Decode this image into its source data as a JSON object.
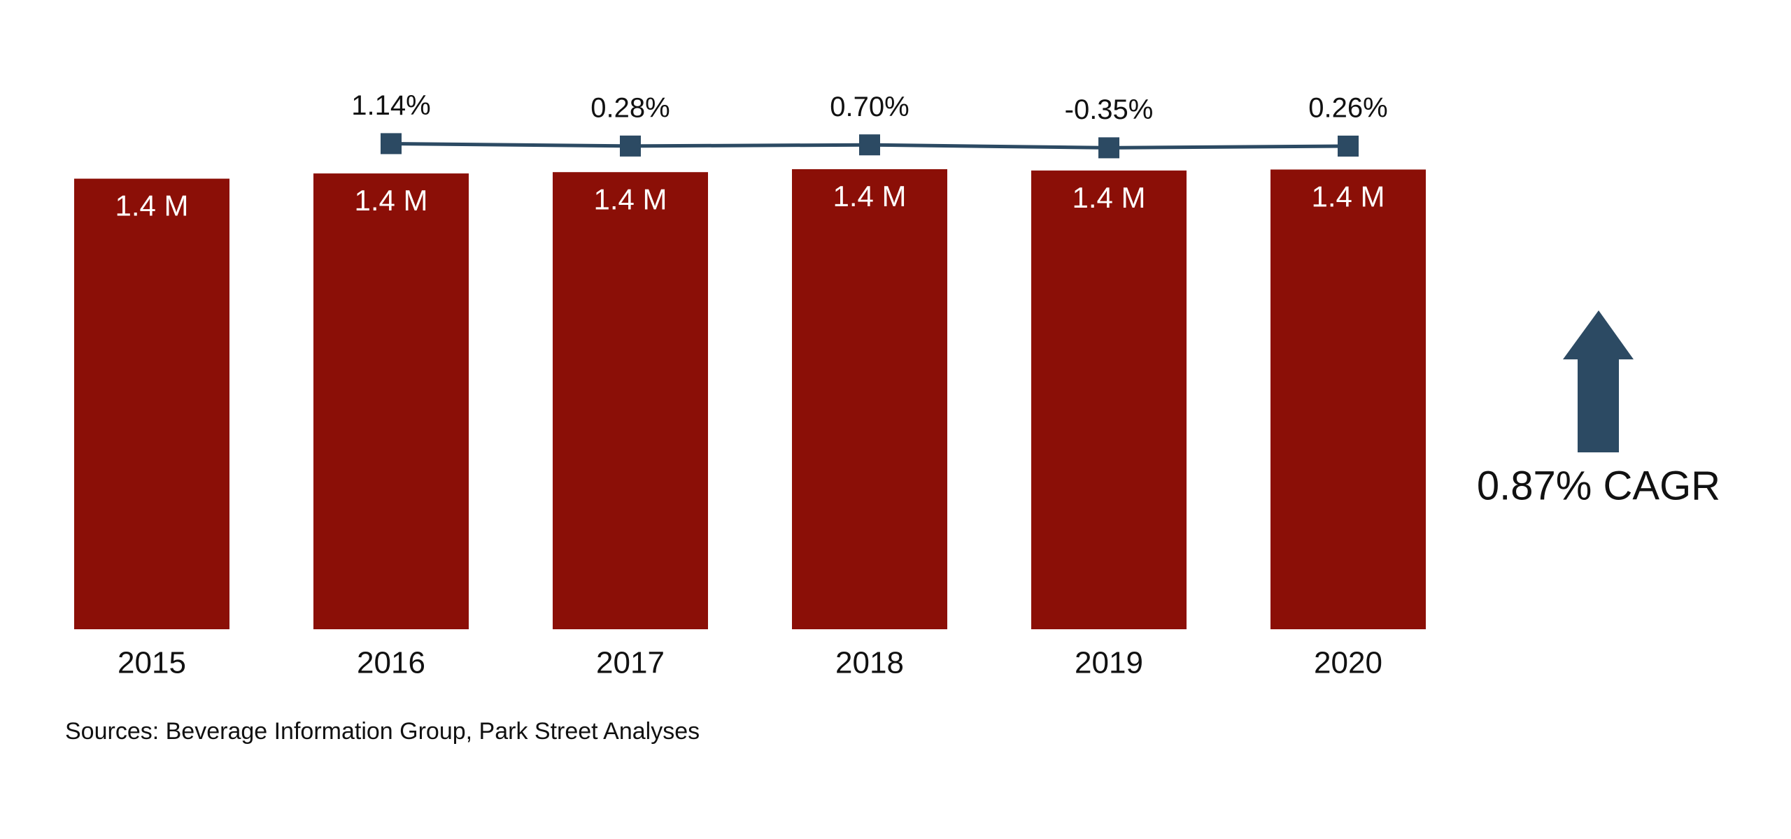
{
  "chart_data": {
    "type": "bar",
    "categories": [
      "2015",
      "2016",
      "2017",
      "2018",
      "2019",
      "2020"
    ],
    "series": [
      {
        "type": "bar",
        "color": "#8b0f07",
        "values": [
          1.38,
          1.396,
          1.4,
          1.409,
          1.405,
          1.408
        ],
        "value_labels": [
          "1.4 M",
          "1.4 M",
          "1.4 M",
          "1.4 M",
          "1.4 M",
          "1.4 M"
        ]
      },
      {
        "type": "line",
        "color": "#2c4a63",
        "values": [
          null,
          1.14,
          0.28,
          0.7,
          -0.35,
          0.26
        ],
        "value_labels": [
          null,
          "1.14%",
          "0.28%",
          "0.70%",
          "-0.35%",
          "0.26%"
        ]
      }
    ],
    "annotation": "0.87% CAGR",
    "source": "Sources: Beverage Information Group, Park Street Analyses"
  }
}
